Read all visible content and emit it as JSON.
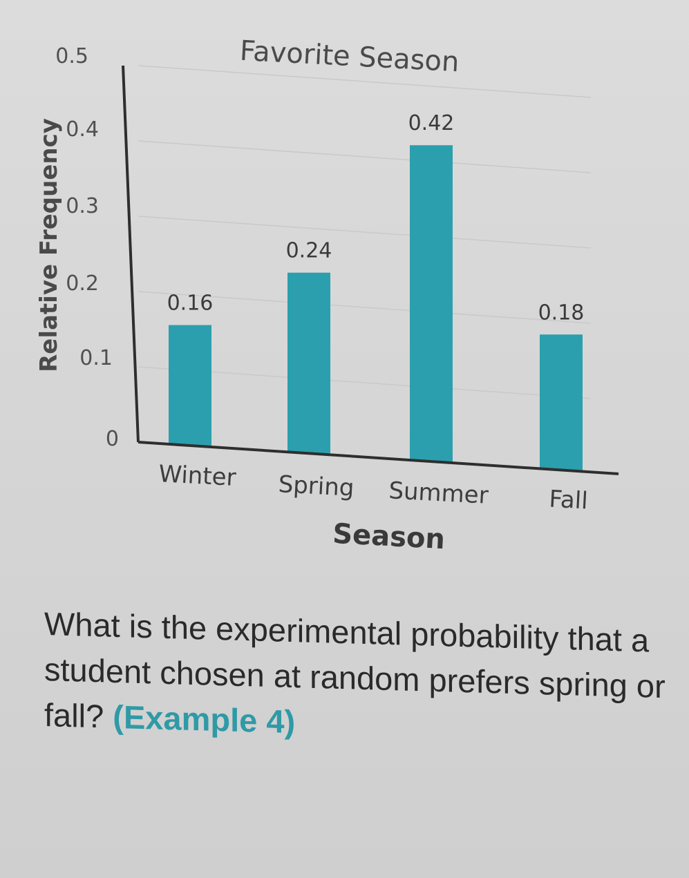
{
  "chart_data": {
    "type": "bar",
    "title": "Favorite Season",
    "xlabel": "Season",
    "ylabel": "Relative Frequency",
    "categories": [
      "Winter",
      "Spring",
      "Summer",
      "Fall"
    ],
    "values": [
      0.16,
      0.24,
      0.42,
      0.18
    ],
    "value_labels": [
      "0.16",
      "0.24",
      "0.42",
      "0.18"
    ],
    "yticks": [
      "0",
      "0.1",
      "0.2",
      "0.3",
      "0.4",
      "0.5"
    ],
    "ylim": [
      0,
      0.5
    ],
    "grid": true,
    "bar_color": "#2b9fad"
  },
  "question": {
    "text": "What is the experimental probability that a student chosen at random prefers spring or fall?",
    "reference": "(Example 4)"
  }
}
